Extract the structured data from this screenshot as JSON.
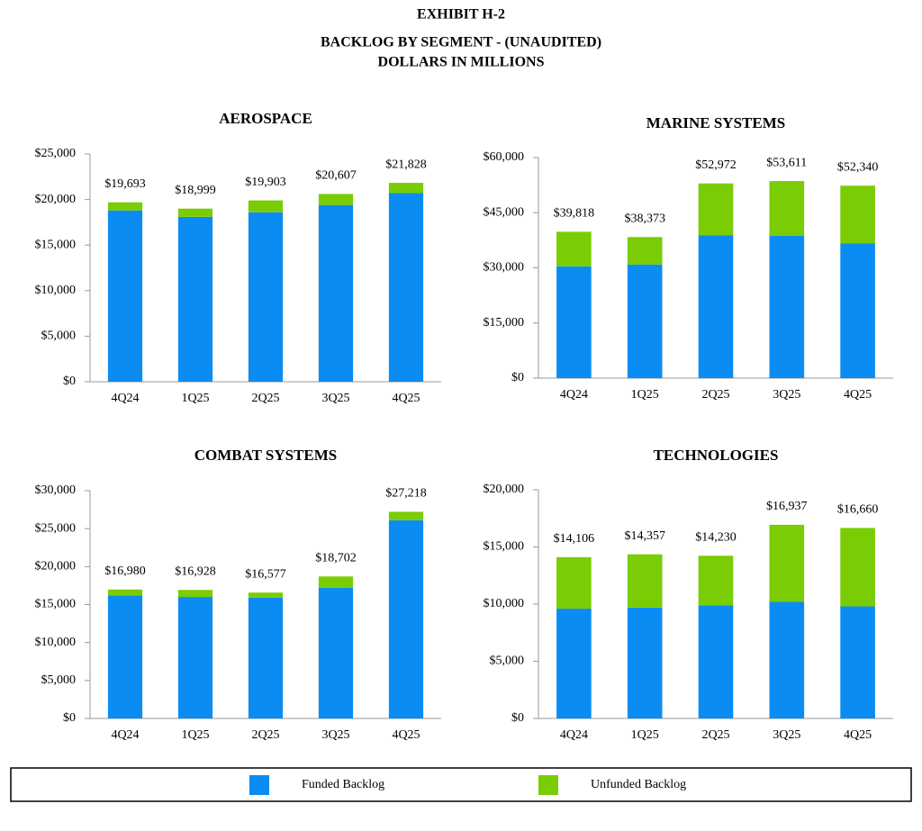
{
  "header": {
    "exhibit": "EXHIBIT H-2",
    "title": "BACKLOG BY SEGMENT - (UNAUDITED)",
    "subtitle": "DOLLARS IN MILLIONS"
  },
  "legend": [
    {
      "name": "Funded Backlog",
      "color": "#0b8cf2"
    },
    {
      "name": "Unfunded Backlog",
      "color": "#7acc05"
    }
  ],
  "chart_data": [
    {
      "type": "stacked_bar",
      "title": "AEROSPACE",
      "categories": [
        "4Q24",
        "1Q25",
        "2Q25",
        "3Q25",
        "4Q25"
      ],
      "series": [
        {
          "values": [
            18800,
            18100,
            18600,
            19400,
            20700
          ]
        },
        {
          "values": [
            893,
            899,
            1303,
            1207,
            1128
          ]
        }
      ],
      "totals": [
        19693,
        18999,
        19903,
        20607,
        21828
      ],
      "total_labels": [
        "$19,693",
        "$18,999",
        "$19,903",
        "$20,607",
        "$21,828"
      ],
      "ylim": [
        0,
        25000
      ],
      "yticks": [
        {
          "value": 0,
          "label": "$0"
        },
        {
          "value": 5000,
          "label": "$5,000"
        },
        {
          "value": 10000,
          "label": "$10,000"
        },
        {
          "value": 15000,
          "label": "$15,000"
        },
        {
          "value": 20000,
          "label": "$20,000"
        },
        {
          "value": 25000,
          "label": "$25,000"
        }
      ]
    },
    {
      "type": "stacked_bar",
      "title": "MARINE SYSTEMS",
      "categories": [
        "4Q24",
        "1Q25",
        "2Q25",
        "3Q25",
        "4Q25"
      ],
      "series": [
        {
          "values": [
            30400,
            30900,
            38900,
            38700,
            36700
          ]
        },
        {
          "values": [
            9418,
            7473,
            14072,
            14911,
            15640
          ]
        }
      ],
      "totals": [
        39818,
        38373,
        52972,
        53611,
        52340
      ],
      "total_labels": [
        "$39,818",
        "$38,373",
        "$52,972",
        "$53,611",
        "$52,340"
      ],
      "ylim": [
        0,
        60000
      ],
      "yticks": [
        {
          "value": 0,
          "label": "$0"
        },
        {
          "value": 15000,
          "label": "$15,000"
        },
        {
          "value": 30000,
          "label": "$30,000"
        },
        {
          "value": 45000,
          "label": "$45,000"
        },
        {
          "value": 60000,
          "label": "$60,000"
        }
      ]
    },
    {
      "type": "stacked_bar",
      "title": "COMBAT SYSTEMS",
      "categories": [
        "4Q24",
        "1Q25",
        "2Q25",
        "3Q25",
        "4Q25"
      ],
      "series": [
        {
          "values": [
            16200,
            16000,
            15900,
            17200,
            26100
          ]
        },
        {
          "values": [
            780,
            928,
            677,
            1502,
            1118
          ]
        }
      ],
      "totals": [
        16980,
        16928,
        16577,
        18702,
        27218
      ],
      "total_labels": [
        "$16,980",
        "$16,928",
        "$16,577",
        "$18,702",
        "$27,218"
      ],
      "ylim": [
        0,
        30000
      ],
      "yticks": [
        {
          "value": 0,
          "label": "$0"
        },
        {
          "value": 5000,
          "label": "$5,000"
        },
        {
          "value": 10000,
          "label": "$10,000"
        },
        {
          "value": 15000,
          "label": "$15,000"
        },
        {
          "value": 20000,
          "label": "$20,000"
        },
        {
          "value": 25000,
          "label": "$25,000"
        },
        {
          "value": 30000,
          "label": "$30,000"
        }
      ]
    },
    {
      "type": "stacked_bar",
      "title": "TECHNOLOGIES",
      "categories": [
        "4Q24",
        "1Q25",
        "2Q25",
        "3Q25",
        "4Q25"
      ],
      "series": [
        {
          "values": [
            9600,
            9700,
            9900,
            10200,
            9800
          ]
        },
        {
          "values": [
            4506,
            4657,
            4330,
            6737,
            6860
          ]
        }
      ],
      "totals": [
        14106,
        14357,
        14230,
        16937,
        16660
      ],
      "total_labels": [
        "$14,106",
        "$14,357",
        "$14,230",
        "$16,937",
        "$16,660"
      ],
      "ylim": [
        0,
        20000
      ],
      "yticks": [
        {
          "value": 0,
          "label": "$0"
        },
        {
          "value": 5000,
          "label": "$5,000"
        },
        {
          "value": 10000,
          "label": "$10,000"
        },
        {
          "value": 15000,
          "label": "$15,000"
        },
        {
          "value": 20000,
          "label": "$20,000"
        }
      ]
    }
  ]
}
